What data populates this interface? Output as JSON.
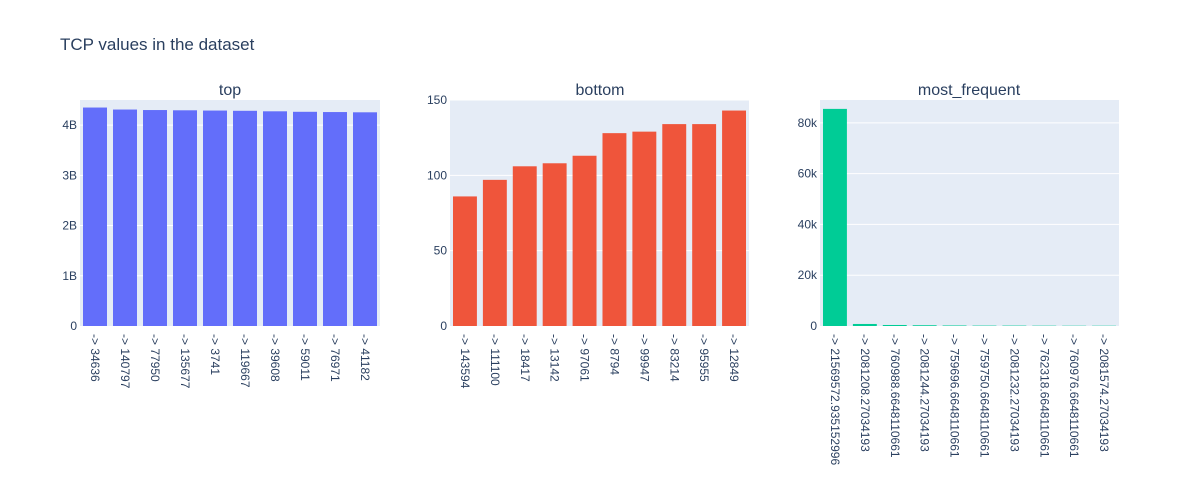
{
  "page_title": "TCP values in the dataset",
  "colors": {
    "plot_bg": "#E5ECF6",
    "grid": "#ffffff",
    "text": "#2a3f5f",
    "top": "#636EFA",
    "bottom": "#EF553B",
    "most_frequent": "#00CC96"
  },
  "chart_data": [
    {
      "id": "top",
      "type": "bar",
      "title": "top",
      "color_key": "top",
      "categories": [
        "-> 34636",
        "-> 140797",
        "-> 77950",
        "-> 135677",
        "-> 3741",
        "-> 119667",
        "-> 39608",
        "-> 59011",
        "-> 76971",
        "-> 41182"
      ],
      "values": [
        4350000000,
        4310000000,
        4300000000,
        4295000000,
        4290000000,
        4285000000,
        4275000000,
        4265000000,
        4260000000,
        4255000000
      ],
      "ylim": [
        0,
        4500000000
      ],
      "yticks": [
        {
          "value": 0,
          "label": "0"
        },
        {
          "value": 1000000000,
          "label": "1B"
        },
        {
          "value": 2000000000,
          "label": "2B"
        },
        {
          "value": 3000000000,
          "label": "3B"
        },
        {
          "value": 4000000000,
          "label": "4B"
        }
      ],
      "grid": true
    },
    {
      "id": "bottom",
      "type": "bar",
      "title": "bottom",
      "color_key": "bottom",
      "categories": [
        "-> 143594",
        "-> 111100",
        "-> 18417",
        "-> 13142",
        "-> 97061",
        "-> 8794",
        "-> 99947",
        "-> 83214",
        "-> 95955",
        "-> 12849"
      ],
      "values": [
        86,
        97,
        106,
        108,
        113,
        128,
        129,
        134,
        134,
        143
      ],
      "ylim": [
        0,
        150
      ],
      "yticks": [
        {
          "value": 0,
          "label": "0"
        },
        {
          "value": 50,
          "label": "50"
        },
        {
          "value": 100,
          "label": "100"
        },
        {
          "value": 150,
          "label": "150"
        }
      ],
      "grid": true
    },
    {
      "id": "most_frequent",
      "type": "bar",
      "title": "most_frequent",
      "color_key": "most_frequent",
      "categories": [
        "-> 21569572.935152996",
        "-> 2081208.27034193",
        "-> 760988.6648110661",
        "-> 2081244.27034193",
        "-> 759696.6648110661",
        "-> 759750.6648110661",
        "-> 2081232.27034193",
        "-> 762318.6648110661",
        "-> 760976.6648110661",
        "-> 2081574.27034193"
      ],
      "values": [
        85500,
        800,
        400,
        300,
        200,
        150,
        150,
        120,
        100,
        100
      ],
      "ylim": [
        0,
        89000
      ],
      "yticks": [
        {
          "value": 0,
          "label": "0"
        },
        {
          "value": 20000,
          "label": "20k"
        },
        {
          "value": 40000,
          "label": "40k"
        },
        {
          "value": 60000,
          "label": "60k"
        },
        {
          "value": 80000,
          "label": "80k"
        }
      ],
      "grid": true
    }
  ]
}
